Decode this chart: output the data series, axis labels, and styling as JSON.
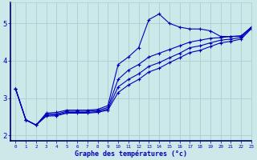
{
  "xlabel": "Graphe des températures (°c)",
  "background_color": "#cce8e8",
  "grid_color": "#aacece",
  "line_color": "#0000bb",
  "xlim": [
    -0.5,
    23
  ],
  "ylim": [
    1.85,
    5.55
  ],
  "yticks": [
    2,
    3,
    4,
    5
  ],
  "xticks": [
    0,
    1,
    2,
    3,
    4,
    5,
    6,
    7,
    8,
    9,
    10,
    11,
    12,
    13,
    14,
    15,
    16,
    17,
    18,
    19,
    20,
    21,
    22,
    23
  ],
  "series": [
    [
      3.25,
      2.42,
      2.28,
      2.6,
      2.62,
      2.68,
      2.68,
      2.68,
      2.7,
      2.8,
      3.9,
      4.1,
      4.35,
      5.1,
      5.25,
      5.0,
      4.9,
      4.85,
      4.85,
      4.8,
      4.65,
      4.65,
      4.65,
      4.9
    ],
    [
      3.25,
      2.42,
      2.28,
      2.57,
      2.58,
      2.65,
      2.65,
      2.65,
      2.67,
      2.75,
      3.5,
      3.75,
      3.9,
      4.1,
      4.2,
      4.3,
      4.4,
      4.5,
      4.55,
      4.6,
      4.62,
      4.65,
      4.67,
      4.9
    ],
    [
      3.25,
      2.42,
      2.28,
      2.54,
      2.55,
      2.62,
      2.62,
      2.62,
      2.64,
      2.71,
      3.3,
      3.5,
      3.65,
      3.85,
      3.95,
      4.08,
      4.2,
      4.35,
      4.4,
      4.48,
      4.55,
      4.58,
      4.62,
      4.88
    ],
    [
      3.25,
      2.42,
      2.28,
      2.52,
      2.53,
      2.6,
      2.6,
      2.6,
      2.62,
      2.68,
      3.15,
      3.35,
      3.5,
      3.7,
      3.8,
      3.95,
      4.08,
      4.22,
      4.28,
      4.38,
      4.48,
      4.52,
      4.58,
      4.86
    ]
  ]
}
